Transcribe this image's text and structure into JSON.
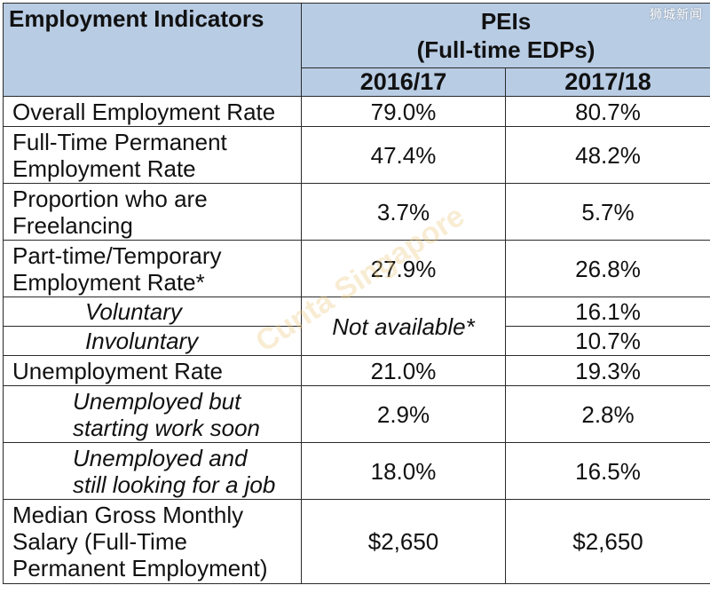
{
  "watermark": "狮城新闻",
  "background_stamp": "Cunta Singapore",
  "header": {
    "indicators_label": "Employment Indicators",
    "group_title_line1": "PEIs",
    "group_title_line2": "(Full-time EDPs)",
    "year_1": "2016/17",
    "year_2": "2017/18"
  },
  "rows": {
    "overall": {
      "label": "Overall Employment Rate",
      "v1": "79.0%",
      "v2": "80.7%"
    },
    "ftperm": {
      "label_line1": "Full-Time Permanent",
      "label_line2": "Employment Rate",
      "v1": "47.4%",
      "v2": "48.2%"
    },
    "freelance": {
      "label_line1": "Proportion who are",
      "label_line2": "Freelancing",
      "v1": "3.7%",
      "v2": "5.7%"
    },
    "parttime": {
      "label_line1": "Part-time/Temporary",
      "label_line2": "Employment Rate*",
      "v1": "27.9%",
      "v2": "26.8%"
    },
    "voluntary": {
      "label": "Voluntary",
      "v2": "16.1%"
    },
    "na_text": "Not available*",
    "involuntary": {
      "label": "Involuntary",
      "v2": "10.7%"
    },
    "unemployment": {
      "label": "Unemployment Rate",
      "v1": "21.0%",
      "v2": "19.3%"
    },
    "starting": {
      "label_line1": "Unemployed but",
      "label_line2": "starting work soon",
      "v1": "2.9%",
      "v2": "2.8%"
    },
    "looking": {
      "label_line1": "Unemployed and",
      "label_line2": "still looking for a job",
      "v1": "18.0%",
      "v2": "16.5%"
    },
    "salary": {
      "label_line1": "Median Gross Monthly",
      "label_line2": "Salary (Full-Time",
      "label_line3": "Permanent Employment)",
      "v1": "$2,650",
      "v2": "$2,650"
    }
  }
}
